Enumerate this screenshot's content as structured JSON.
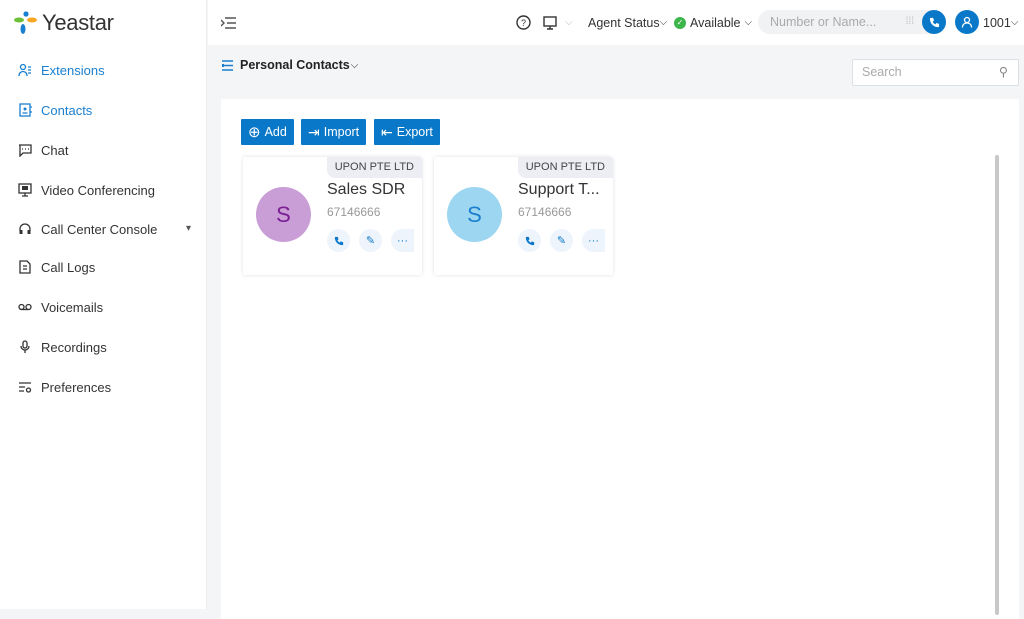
{
  "app": {
    "logo": "Yeastar"
  },
  "sidebar": {
    "items": [
      {
        "label": "Extensions",
        "icon": "user-list-icon",
        "active": true
      },
      {
        "label": "Contacts",
        "icon": "contacts-icon",
        "active": true
      },
      {
        "label": "Chat",
        "icon": "chat-icon"
      },
      {
        "label": "Video Conferencing",
        "icon": "monitor-icon"
      },
      {
        "label": "Call Center Console",
        "icon": "headset-icon"
      },
      {
        "label": "Call Logs",
        "icon": "call-log-icon"
      },
      {
        "label": "Voicemails",
        "icon": "voicemail-icon"
      },
      {
        "label": "Recordings",
        "icon": "microphone-icon"
      },
      {
        "label": "Preferences",
        "icon": "preferences-icon"
      }
    ]
  },
  "header": {
    "agent_status": "Agent Status",
    "availability": "Available",
    "dial_placeholder": "Number or Name...",
    "user": "1001"
  },
  "toolbar": {
    "title": "Personal Contacts",
    "search_placeholder": "Search",
    "add": "Add",
    "import": "Import",
    "export": "Export"
  },
  "contacts": [
    {
      "initial": "S",
      "name": "Sales SDR",
      "number": "67146666",
      "company": "UPON PTE LTD",
      "avatar_bg": "#c99ed6",
      "avatar_fg": "#7a1f93"
    },
    {
      "initial": "S",
      "name": "Support T...",
      "number": "67146666",
      "company": "UPON PTE LTD",
      "avatar_bg": "#9dd6f0",
      "avatar_fg": "#1a7fcf"
    }
  ],
  "colors": {
    "accent": "#0a78c8",
    "available": "#3cb54a"
  }
}
